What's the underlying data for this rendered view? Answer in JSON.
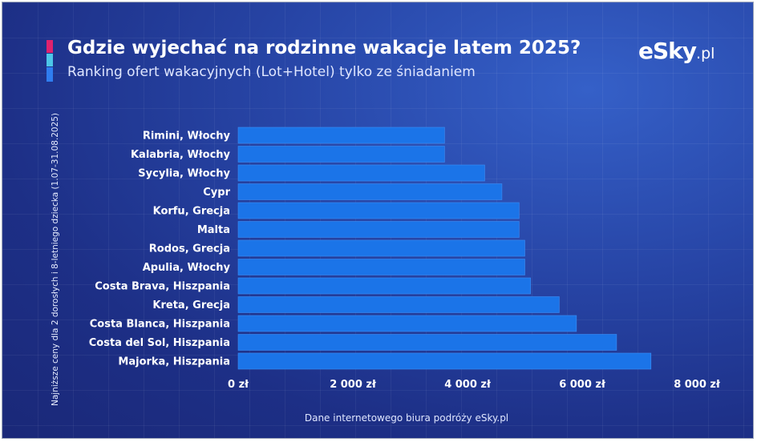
{
  "header": {
    "title": "Gdzie wyjechać na rodzinne wakacje latem 2025?",
    "subtitle": "Ranking ofert wakacyjnych (Lot+Hotel) tylko ze śniadaniem"
  },
  "logo": {
    "brand": "eSky",
    "domain": ".pl"
  },
  "footer": {
    "source": "Dane internetowego biura podróży eSky.pl"
  },
  "colors": {
    "bar": "#1b74e8",
    "bar_edge": "#3d8ef5",
    "accent_pink": "#e0226e",
    "accent_cyan": "#4cc6e8",
    "accent_blue": "#2f7df0"
  },
  "chart_data": {
    "type": "bar",
    "orientation": "horizontal",
    "categories": [
      "Rimini, Włochy",
      "Kalabria, Włochy",
      "Sycylia, Włochy",
      "Cypr",
      "Korfu, Grecja",
      "Malta",
      "Rodos, Grecja",
      "Apulia, Włochy",
      "Costa Brava, Hiszpania",
      "Kreta, Grecja",
      "Costa Blanca, Hiszpania",
      "Costa del Sol, Hiszpania",
      "Majorka, Hiszpania"
    ],
    "values": [
      3600,
      3600,
      4300,
      4600,
      4900,
      4900,
      5000,
      5000,
      5100,
      5600,
      5900,
      6600,
      7200
    ],
    "xlim": [
      0,
      8000
    ],
    "xticks": [
      0,
      2000,
      4000,
      6000,
      8000
    ],
    "xtick_labels": [
      "0 zł",
      "2 000 zł",
      "4 000 zł",
      "6 000 zł",
      "8 000 zł"
    ],
    "ylabel": "Najniższe ceny dla 2 dorosłych i 8-letniego dziecka (1.07-31.08.2025)",
    "grid": false,
    "legend": "none"
  }
}
